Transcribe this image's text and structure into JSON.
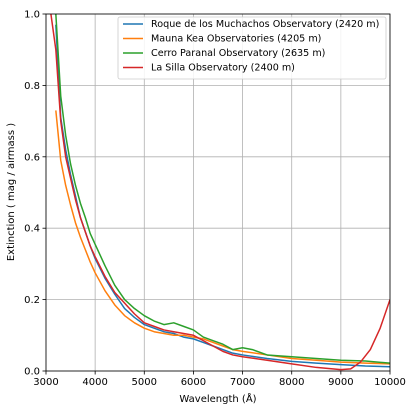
{
  "chart_data": {
    "type": "line",
    "title": "",
    "xlabel": "Wavelength (Å)",
    "ylabel": "Extinction ( mag / airmass )",
    "xlim": [
      3000,
      10000
    ],
    "ylim": [
      0.0,
      1.0
    ],
    "xticks": [
      3000,
      4000,
      5000,
      6000,
      7000,
      8000,
      9000,
      10000
    ],
    "yticks": [
      0.0,
      0.2,
      0.4,
      0.6,
      0.8,
      1.0
    ],
    "xtick_labels": [
      "3000",
      "4000",
      "5000",
      "6000",
      "7000",
      "8000",
      "9000",
      "10000"
    ],
    "ytick_labels": [
      "0.0",
      "0.2",
      "0.4",
      "0.6",
      "0.8",
      "1.0"
    ],
    "grid": true,
    "legend_position": "top-right",
    "series": [
      {
        "name": "Roque de los Muchachos Observatory (2420 m)",
        "color": "#1f77b4",
        "x": [
          3200,
          3300,
          3400,
          3500,
          3600,
          3700,
          3800,
          3900,
          4000,
          4200,
          4400,
          4600,
          4800,
          5000,
          5200,
          5400,
          5600,
          5800,
          6000,
          6200,
          6400,
          6600,
          6800,
          7000,
          7500,
          8000,
          8500,
          9000,
          9500,
          10000
        ],
        "y": [
          0.97,
          0.71,
          0.62,
          0.55,
          0.49,
          0.43,
          0.39,
          0.35,
          0.315,
          0.26,
          0.215,
          0.175,
          0.15,
          0.13,
          0.12,
          0.11,
          0.105,
          0.095,
          0.09,
          0.08,
          0.07,
          0.06,
          0.05,
          0.045,
          0.035,
          0.027,
          0.022,
          0.018,
          0.014,
          0.012
        ]
      },
      {
        "name": "Mauna Kea Observatories (4205 m)",
        "color": "#ff7f0e",
        "x": [
          3200,
          3300,
          3400,
          3500,
          3600,
          3700,
          3800,
          3900,
          4000,
          4200,
          4400,
          4600,
          4800,
          5000,
          5200,
          5400,
          5600,
          5800,
          6000,
          6200,
          6400,
          6600,
          6800,
          7000,
          7500,
          8000,
          8500,
          9000,
          9500,
          10000
        ],
        "y": [
          0.73,
          0.59,
          0.52,
          0.465,
          0.415,
          0.375,
          0.34,
          0.305,
          0.275,
          0.225,
          0.185,
          0.155,
          0.135,
          0.12,
          0.11,
          0.105,
          0.1,
          0.1,
          0.095,
          0.09,
          0.08,
          0.07,
          0.06,
          0.055,
          0.045,
          0.035,
          0.03,
          0.025,
          0.022,
          0.02
        ]
      },
      {
        "name": "Cerro Paranal Observatory (2635 m)",
        "color": "#2ca02c",
        "x": [
          3200,
          3300,
          3400,
          3500,
          3600,
          3700,
          3800,
          3900,
          4000,
          4200,
          4400,
          4600,
          4800,
          5000,
          5200,
          5400,
          5600,
          5800,
          6000,
          6200,
          6400,
          6600,
          6800,
          7000,
          7200,
          7500,
          8000,
          8500,
          9000,
          9500,
          10000
        ],
        "y": [
          1.0,
          0.77,
          0.66,
          0.58,
          0.52,
          0.47,
          0.43,
          0.385,
          0.355,
          0.295,
          0.24,
          0.2,
          0.175,
          0.155,
          0.14,
          0.13,
          0.135,
          0.125,
          0.115,
          0.095,
          0.085,
          0.075,
          0.06,
          0.065,
          0.06,
          0.045,
          0.04,
          0.035,
          0.03,
          0.028,
          0.022
        ]
      },
      {
        "name": "La Silla Observatory (2400 m)",
        "color": "#d62728",
        "x": [
          3100,
          3200,
          3300,
          3400,
          3500,
          3600,
          3700,
          3800,
          3900,
          4000,
          4200,
          4400,
          4600,
          4800,
          5000,
          5200,
          5400,
          5600,
          5800,
          6000,
          6200,
          6400,
          6600,
          6800,
          7000,
          7500,
          8000,
          8500,
          9000,
          9200,
          9400,
          9600,
          9800,
          10000
        ],
        "y": [
          1.0,
          0.9,
          0.7,
          0.6,
          0.54,
          0.48,
          0.43,
          0.39,
          0.35,
          0.32,
          0.265,
          0.22,
          0.19,
          0.16,
          0.135,
          0.125,
          0.115,
          0.11,
          0.105,
          0.1,
          0.085,
          0.07,
          0.055,
          0.045,
          0.04,
          0.03,
          0.02,
          0.01,
          0.004,
          0.006,
          0.025,
          0.06,
          0.12,
          0.2
        ]
      }
    ]
  }
}
